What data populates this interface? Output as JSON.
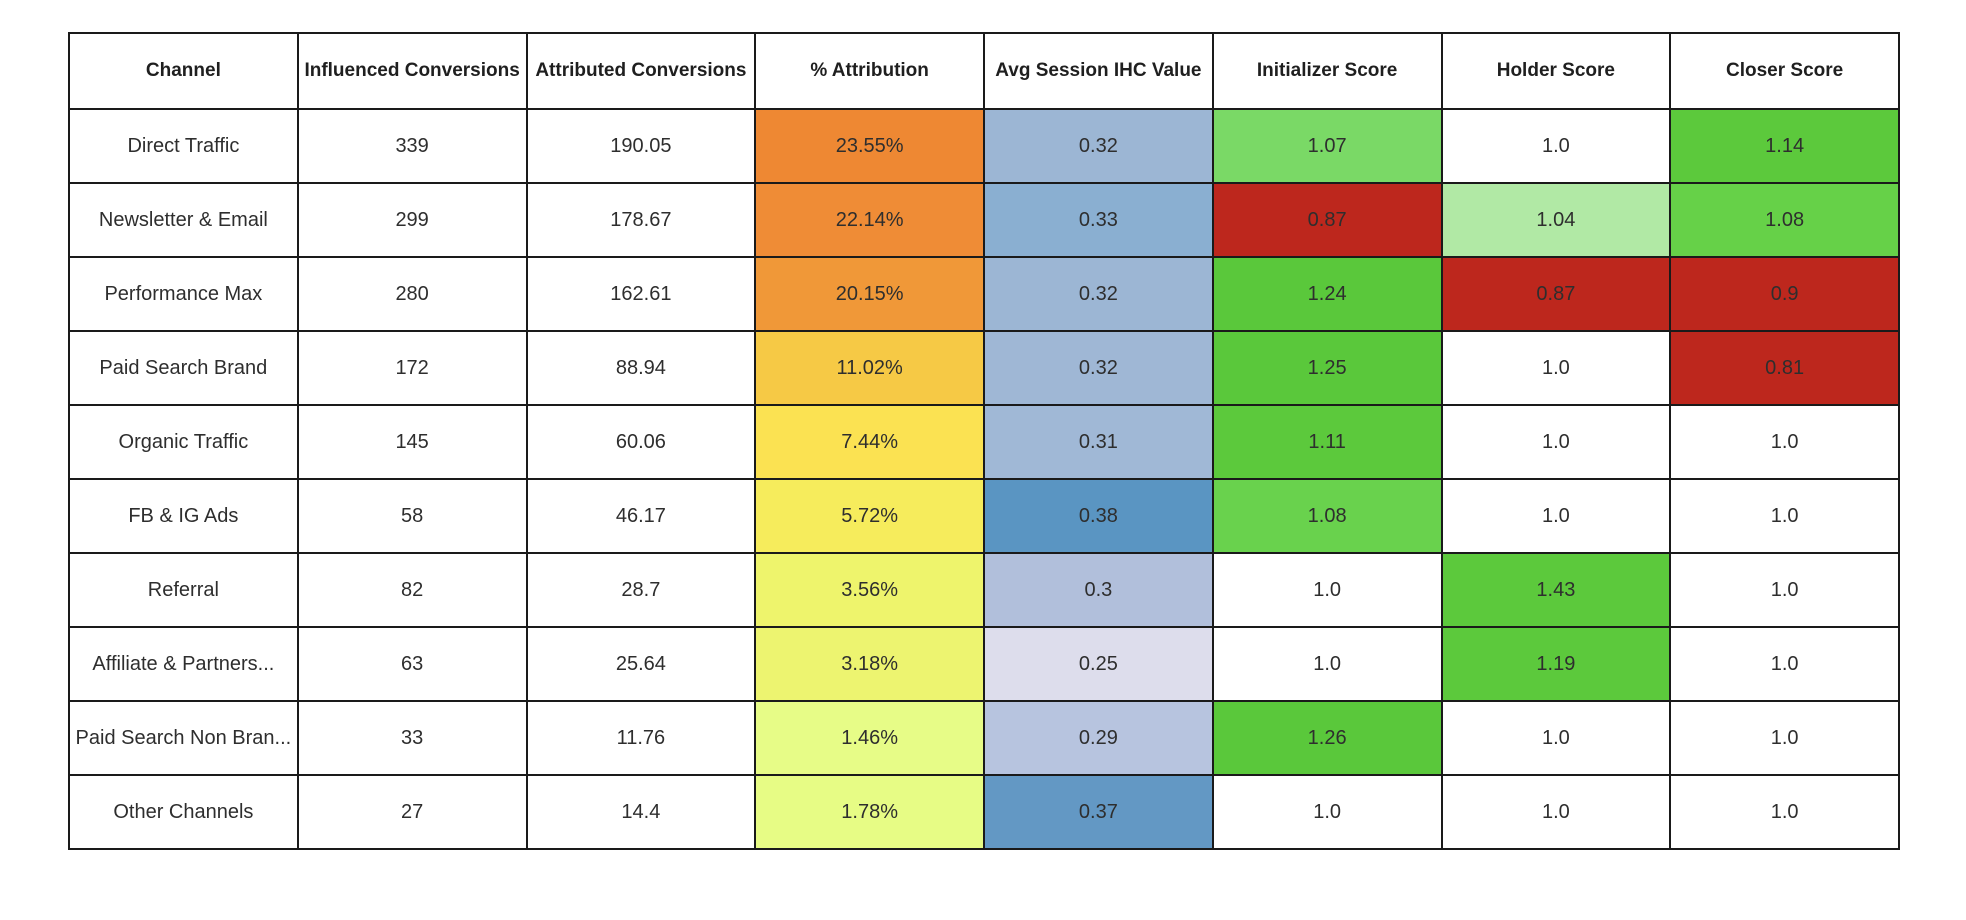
{
  "chart_data": {
    "type": "table",
    "columns": [
      "Channel",
      "Influenced Conversions",
      "Attributed Conversions",
      "% Attribution",
      "Avg Session IHC Value",
      "Initializer Score",
      "Holder Score",
      "Closer Score"
    ],
    "rows": [
      [
        "Direct Traffic",
        "339",
        "190.05",
        "23.55%",
        "0.32",
        "1.07",
        "1.0",
        "1.14"
      ],
      [
        "Newsletter & Email",
        "299",
        "178.67",
        "22.14%",
        "0.33",
        "0.87",
        "1.04",
        "1.08"
      ],
      [
        "Performance Max",
        "280",
        "162.61",
        "20.15%",
        "0.32",
        "1.24",
        "0.87",
        "0.9"
      ],
      [
        "Paid Search Brand",
        "172",
        "88.94",
        "11.02%",
        "0.32",
        "1.25",
        "1.0",
        "0.81"
      ],
      [
        "Organic Traffic",
        "145",
        "60.06",
        "7.44%",
        "0.31",
        "1.11",
        "1.0",
        "1.0"
      ],
      [
        "FB & IG Ads",
        "58",
        "46.17",
        "5.72%",
        "0.38",
        "1.08",
        "1.0",
        "1.0"
      ],
      [
        "Referral",
        "82",
        "28.7",
        "3.56%",
        "0.3",
        "1.0",
        "1.43",
        "1.0"
      ],
      [
        "Affiliate & Partners...",
        "63",
        "25.64",
        "3.18%",
        "0.25",
        "1.0",
        "1.19",
        "1.0"
      ],
      [
        "Paid Search Non Bran...",
        "33",
        "11.76",
        "1.46%",
        "0.29",
        "1.26",
        "1.0",
        "1.0"
      ],
      [
        "Other Channels",
        "27",
        "14.4",
        "1.78%",
        "0.37",
        "1.0",
        "1.0",
        "1.0"
      ]
    ],
    "cell_colors": [
      [
        "#ffffff",
        "#ffffff",
        "#ffffff",
        "#ee8833",
        "#9cb6d4",
        "#7ad966",
        "#ffffff",
        "#5cc93c"
      ],
      [
        "#ffffff",
        "#ffffff",
        "#ffffff",
        "#ef8c36",
        "#8aafd1",
        "#bd271d",
        "#b1e9a5",
        "#66d148"
      ],
      [
        "#ffffff",
        "#ffffff",
        "#ffffff",
        "#f09838",
        "#9cb6d4",
        "#5ac83b",
        "#bd271d",
        "#bd271d"
      ],
      [
        "#ffffff",
        "#ffffff",
        "#ffffff",
        "#f6c945",
        "#9fb7d5",
        "#5ac83b",
        "#ffffff",
        "#bd271d"
      ],
      [
        "#ffffff",
        "#ffffff",
        "#ffffff",
        "#fbe252",
        "#a0b8d6",
        "#5cc93c",
        "#ffffff",
        "#ffffff"
      ],
      [
        "#ffffff",
        "#ffffff",
        "#ffffff",
        "#f6ec5c",
        "#5a95c2",
        "#69d24d",
        "#ffffff",
        "#ffffff"
      ],
      [
        "#ffffff",
        "#ffffff",
        "#ffffff",
        "#eef46c",
        "#b1bfdb",
        "#ffffff",
        "#5cc93c",
        "#ffffff"
      ],
      [
        "#ffffff",
        "#ffffff",
        "#ffffff",
        "#edf470",
        "#ddddec",
        "#ffffff",
        "#5cc93c",
        "#ffffff"
      ],
      [
        "#ffffff",
        "#ffffff",
        "#ffffff",
        "#e7fc87",
        "#b7c4df",
        "#5ac83b",
        "#ffffff",
        "#ffffff"
      ],
      [
        "#ffffff",
        "#ffffff",
        "#ffffff",
        "#e7fc85",
        "#6398c4",
        "#ffffff",
        "#ffffff",
        "#ffffff"
      ]
    ]
  }
}
